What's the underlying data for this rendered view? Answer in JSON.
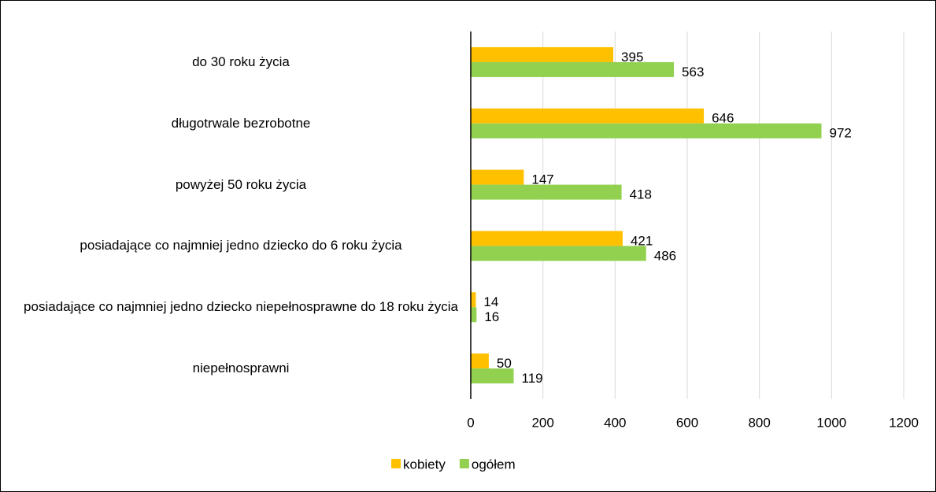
{
  "chart_data": {
    "type": "bar",
    "orientation": "horizontal",
    "categories": [
      "do 30 roku życia",
      "długotrwale bezrobotne",
      "powyżej 50 roku życia",
      "posiadające co najmniej jedno dziecko do 6 roku życia",
      "posiadające co najmniej jedno dziecko niepełnosprawne do 18 roku życia",
      "niepełnosprawni"
    ],
    "series": [
      {
        "name": "kobiety",
        "color": "#ffc000",
        "values": [
          395,
          646,
          147,
          421,
          14,
          50
        ]
      },
      {
        "name": "ogółem",
        "color": "#92d050",
        "values": [
          563,
          972,
          418,
          486,
          16,
          119
        ]
      }
    ],
    "xlim": [
      0,
      1200
    ],
    "xticks": [
      0,
      200,
      400,
      600,
      800,
      1000,
      1200
    ],
    "grid": true,
    "legend": "bottom"
  }
}
